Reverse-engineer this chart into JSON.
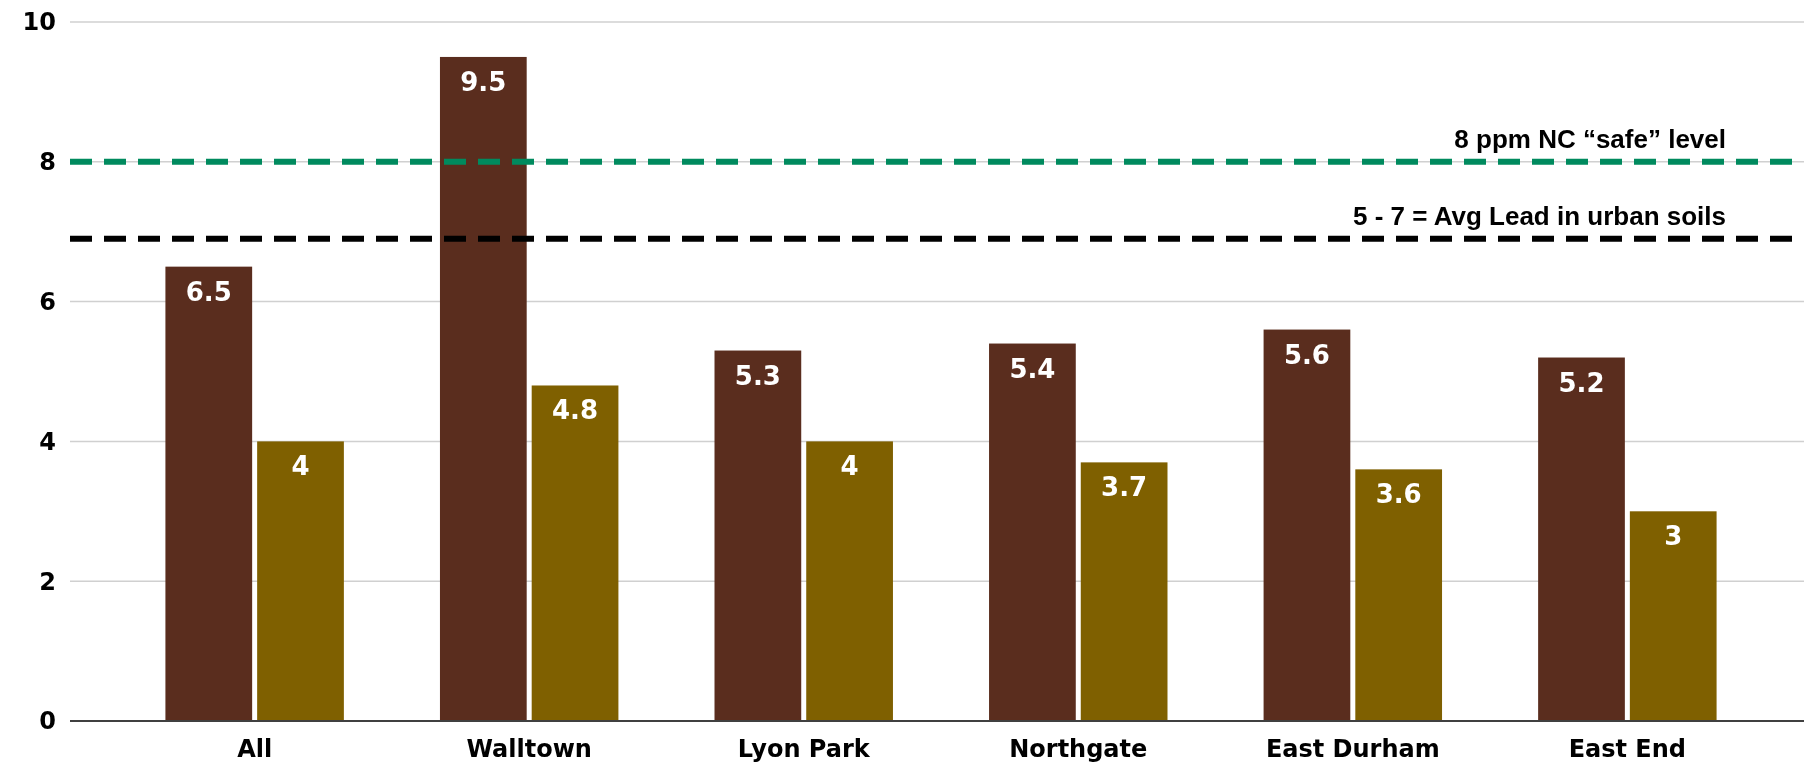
{
  "chart_data": {
    "type": "bar",
    "categories": [
      "All",
      "Walltown",
      "Lyon Park",
      "Northgate",
      "East Durham",
      "East End"
    ],
    "series": [
      {
        "color": "#5a2d1e",
        "values": [
          6.5,
          9.5,
          5.3,
          5.4,
          5.6,
          5.2
        ]
      },
      {
        "color": "#7f6000",
        "values": [
          4,
          4.8,
          4,
          3.7,
          3.6,
          3
        ]
      }
    ],
    "ylim": [
      0,
      10
    ],
    "yticks": [
      0,
      2,
      4,
      6,
      8,
      10
    ],
    "grid": "y",
    "data_labels": true,
    "ref_lines": [
      {
        "axis": "y",
        "value": 8,
        "label": "8 ppm NC “safe”  level",
        "color": "#008a5e",
        "line_style": "dashed"
      },
      {
        "axis": "y",
        "value": 6.9,
        "label": "5 - 7 = Avg Lead in urban soils",
        "color": "#000000",
        "line_style": "dashed"
      }
    ]
  }
}
